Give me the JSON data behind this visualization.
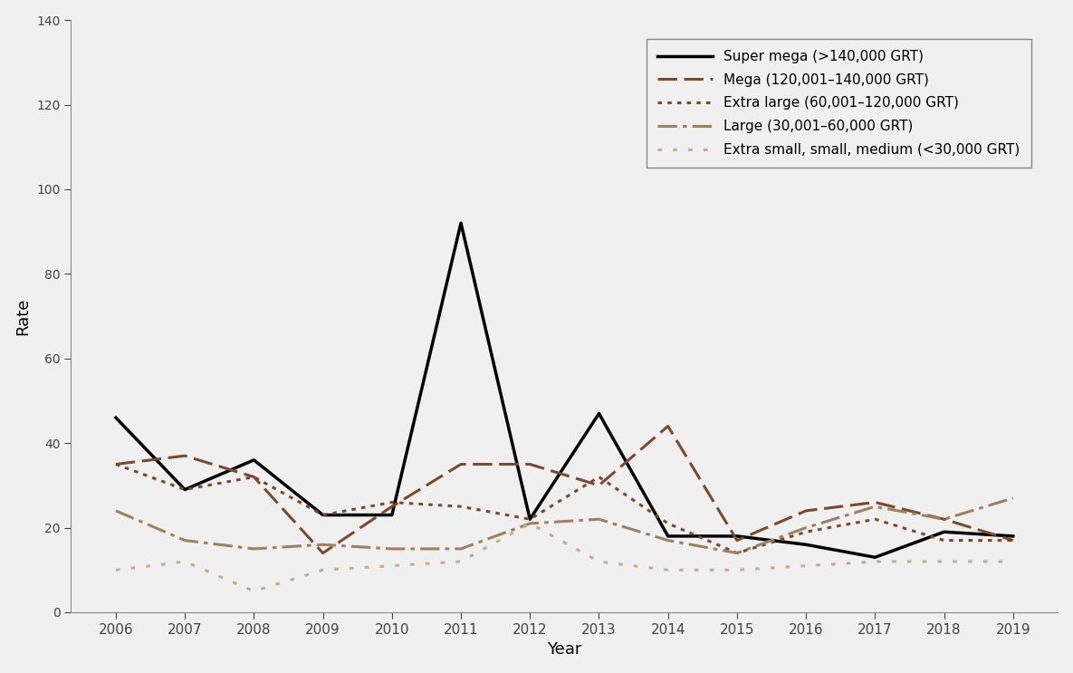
{
  "years": [
    2006,
    2007,
    2008,
    2009,
    2010,
    2011,
    2012,
    2013,
    2014,
    2015,
    2016,
    2017,
    2018,
    2019
  ],
  "super_mega": [
    46,
    29,
    36,
    23,
    23,
    92,
    22,
    47,
    18,
    18,
    16,
    13,
    19,
    18
  ],
  "mega": [
    35,
    37,
    32,
    14,
    25,
    35,
    35,
    30,
    44,
    17,
    24,
    26,
    22,
    17
  ],
  "extra_large": [
    35,
    29,
    32,
    23,
    26,
    25,
    22,
    32,
    21,
    14,
    19,
    22,
    17,
    17
  ],
  "large": [
    24,
    17,
    15,
    16,
    15,
    15,
    21,
    22,
    17,
    14,
    20,
    25,
    22,
    27
  ],
  "extra_small": [
    10,
    12,
    5,
    10,
    11,
    12,
    21,
    12,
    10,
    10,
    11,
    12,
    12,
    12
  ],
  "super_mega_color": "#000000",
  "mega_color": "#7B4A2D",
  "extra_large_color": "#7B4A2D",
  "large_color": "#A08060",
  "extra_small_color": "#C8AA88",
  "xlabel": "Year",
  "ylabel": "Rate",
  "ylim": [
    0,
    140
  ],
  "yticks": [
    0,
    20,
    40,
    60,
    80,
    100,
    120,
    140
  ],
  "legend_labels": [
    "Super mega (>140,000 GRT)",
    "Mega (120,001–140,000 GRT)",
    "Extra large (60,001–120,000 GRT)",
    "Large (30,001–60,000 GRT)",
    "Extra small, small, medium (<30,000 GRT)"
  ],
  "background_color": "#f0f0f0"
}
